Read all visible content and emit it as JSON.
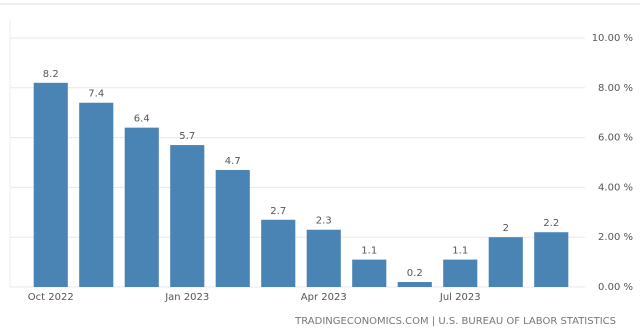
{
  "chart_data": {
    "type": "bar",
    "categories": [
      "Oct 2022",
      null,
      null,
      "Jan 2023",
      null,
      null,
      "Apr 2023",
      null,
      null,
      "Jul 2023",
      null,
      null
    ],
    "values": [
      8.2,
      7.4,
      6.4,
      5.7,
      4.7,
      2.7,
      2.3,
      1.1,
      0.2,
      1.1,
      2,
      2.2
    ],
    "color": "#4a84b5",
    "ylim": [
      0,
      10
    ],
    "yticks": [
      {
        "value": 0,
        "label": "0.00 %"
      },
      {
        "value": 2,
        "label": "2.00 %"
      },
      {
        "value": 4,
        "label": "4.00 %"
      },
      {
        "value": 6,
        "label": "6.00 %"
      },
      {
        "value": 8,
        "label": "8.00 %"
      },
      {
        "value": 10,
        "label": "10.00 %"
      }
    ],
    "grid": true,
    "source": "TRADINGECONOMICS.COM | U.S. BUREAU OF LABOR STATISTICS"
  }
}
